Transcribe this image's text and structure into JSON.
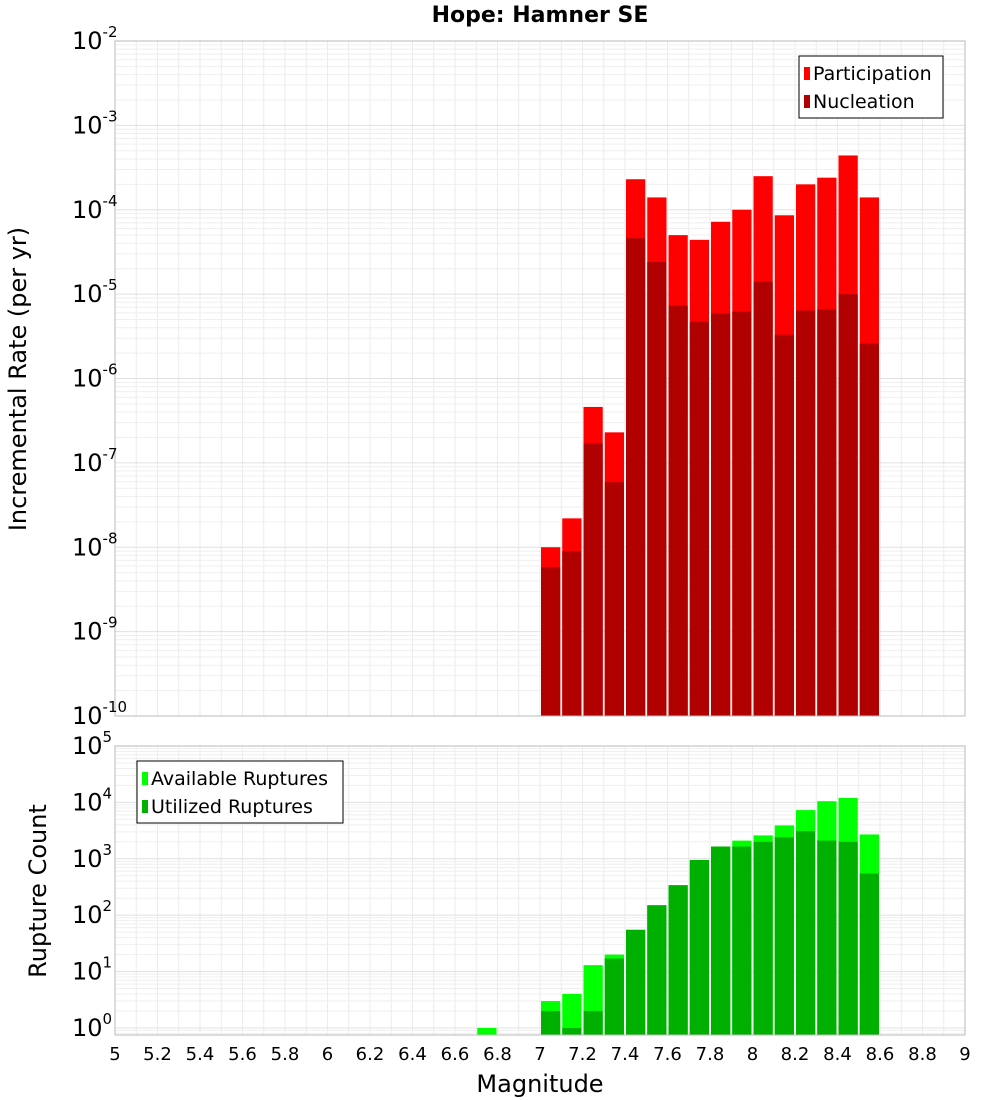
{
  "chart_data": [
    {
      "type": "bar",
      "title": "Hope: Hamner SE",
      "xlabel": "Magnitude",
      "ylabel": "Incremental Rate (per yr)",
      "xlim": [
        5,
        9
      ],
      "ylim": [
        1e-10,
        0.01
      ],
      "yscale": "log",
      "bin_width": 0.1,
      "grid": true,
      "legend_position": "top-right",
      "y_ticks": [
        {
          "base": "10",
          "exp": "-10"
        },
        {
          "base": "10",
          "exp": "-9"
        },
        {
          "base": "10",
          "exp": "-8"
        },
        {
          "base": "10",
          "exp": "-7"
        },
        {
          "base": "10",
          "exp": "-6"
        },
        {
          "base": "10",
          "exp": "-5"
        },
        {
          "base": "10",
          "exp": "-4"
        },
        {
          "base": "10",
          "exp": "-3"
        },
        {
          "base": "10",
          "exp": "-2"
        }
      ],
      "x": [
        7.05,
        7.15,
        7.25,
        7.35,
        7.45,
        7.55,
        7.65,
        7.75,
        7.85,
        7.95,
        8.05,
        8.15,
        8.25,
        8.35,
        8.45,
        8.55
      ],
      "series": [
        {
          "name": "Participation",
          "color": "#ff0000",
          "values": [
            1e-08,
            2.2e-08,
            4.6e-07,
            2.3e-07,
            0.00023,
            0.00014,
            5e-05,
            4.4e-05,
            7.2e-05,
            0.0001,
            0.00025,
            8.6e-05,
            0.0002,
            0.00024,
            0.00044,
            0.00014
          ]
        },
        {
          "name": "Nucleation",
          "color": "#b00000",
          "values": [
            5.8e-09,
            9e-09,
            1.7e-07,
            5.9e-08,
            4.6e-05,
            2.4e-05,
            7.3e-06,
            4.7e-06,
            5.9e-06,
            6.2e-06,
            1.4e-05,
            3.3e-06,
            6.4e-06,
            6.6e-06,
            1e-05,
            2.6e-06
          ]
        }
      ]
    },
    {
      "type": "bar",
      "xlabel": "Magnitude",
      "ylabel": "Rupture Count",
      "xlim": [
        5,
        9
      ],
      "ylim": [
        0.75,
        100000.0
      ],
      "yscale": "log",
      "bin_width": 0.1,
      "grid": true,
      "legend_position": "top-left",
      "x_ticks": [
        "5",
        "5.2",
        "5.4",
        "5.6",
        "5.8",
        "6",
        "6.2",
        "6.4",
        "6.6",
        "6.8",
        "7",
        "7.2",
        "7.4",
        "7.6",
        "7.8",
        "8",
        "8.2",
        "8.4",
        "8.6",
        "8.8",
        "9"
      ],
      "y_ticks": [
        {
          "base": "10",
          "exp": "0"
        },
        {
          "base": "10",
          "exp": "1"
        },
        {
          "base": "10",
          "exp": "2"
        },
        {
          "base": "10",
          "exp": "3"
        },
        {
          "base": "10",
          "exp": "4"
        },
        {
          "base": "10",
          "exp": "5"
        }
      ],
      "x": [
        6.75,
        7.05,
        7.15,
        7.25,
        7.35,
        7.45,
        7.55,
        7.65,
        7.75,
        7.85,
        7.95,
        8.05,
        8.15,
        8.25,
        8.35,
        8.45,
        8.55
      ],
      "series": [
        {
          "name": "Available Ruptures",
          "color": "#00ff00",
          "values": [
            1,
            3,
            4,
            13,
            20,
            55,
            150,
            340,
            950,
            1650,
            2100,
            2600,
            3900,
            7300,
            10500,
            12000,
            2700
          ]
        },
        {
          "name": "Utilized Ruptures",
          "color": "#00b000",
          "values": [
            0,
            2,
            1,
            2,
            17,
            55,
            150,
            340,
            950,
            1650,
            1650,
            2000,
            2400,
            3100,
            2100,
            2000,
            550
          ]
        }
      ]
    }
  ]
}
